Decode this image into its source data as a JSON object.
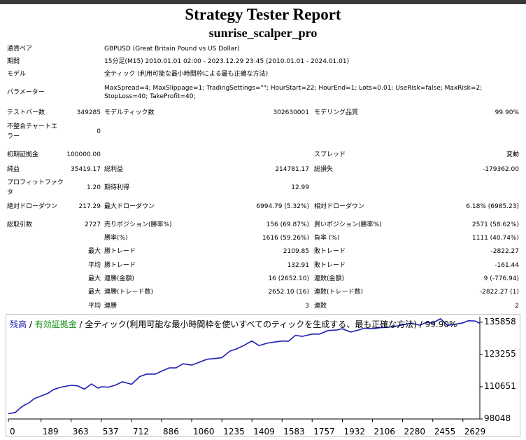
{
  "report": {
    "title": "Strategy Tester Report",
    "expert_name": "sunrise_scalper_pro"
  },
  "settings": {
    "symbol_label": "通貨ペア",
    "symbol_value": "GBPUSD (Great Britain Pound vs US Dollar)",
    "period_label": "期間",
    "period_value": "15分足(M15) 2010.01.01 02:00 - 2023.12.29 23:45 (2010.01.01 - 2024.01.01)",
    "model_label": "モデル",
    "model_value": "全ティック (利用可能な最小時間枠による最も正確な方法)",
    "params_label": "パラメーター",
    "params_line1": "MaxSpread=4; MaxSlippage=1; TradingSettings=\"\"; HourStart=22; HourEnd=1; Lots=0.01; UseRisk=false; MaxRisk=2;",
    "params_line2": "StopLoss=40; TakeProfit=40;"
  },
  "stats": {
    "bars_label": "テストバー数",
    "bars_value": "349285",
    "ticks_label": "モデルティック数",
    "ticks_value": "302630001",
    "quality_label": "モデリング品質",
    "quality_value": "99.90%",
    "mismatch_label_1": "不整合チャートエ",
    "mismatch_label_2": "ラー",
    "mismatch_value": "0",
    "deposit_label": "初期証拠金",
    "deposit_value": "100000.00",
    "spread_label": "スプレッド",
    "spread_value": "変動",
    "net_label": "純益",
    "net_value": "35419.17",
    "gross_profit_label": "総利益",
    "gross_profit_value": "214781.17",
    "gross_loss_label": "総損失",
    "gross_loss_value": "-179362.00",
    "pf_label_1": "プロフィットファク",
    "pf_label_2": "タ",
    "pf_value": "1.20",
    "expected_label": "期待利得",
    "expected_value": "12.99",
    "abs_dd_label": "絶対ドローダウン",
    "abs_dd_value": "217.29",
    "max_dd_label": "最大ドローダウン",
    "max_dd_value": "6994.79 (5.32%)",
    "rel_dd_label": "相対ドローダウン",
    "rel_dd_value": "6.18% (6985.23)",
    "trades_label": "総取引数",
    "trades_value": "2727",
    "short_label": "売りポジション(勝率%)",
    "short_value": "156 (69.87%)",
    "long_label": "買いポジション(勝率%)",
    "long_value": "2571 (58.62%)",
    "win_pct_label": "勝率(%)",
    "win_pct_value": "1616 (59.26%)",
    "loss_pct_label": "負率 (%)",
    "loss_pct_value": "1111 (40.74%)",
    "largest_label": "最大",
    "largest_win_label": "勝トレード",
    "largest_win_value": "2109.85",
    "largest_loss_label": "敗トレード",
    "largest_loss_value": "-2822.27",
    "average_label": "平均",
    "avg_win_label": "勝トレード",
    "avg_win_value": "132.91",
    "avg_loss_label": "敗トレード",
    "avg_loss_value": "-161.44",
    "max1_label": "最大",
    "max_consec_wins_label": "連勝(金額)",
    "max_consec_wins_value": "16 (2652.10)",
    "max_consec_losses_label": "連敗(金額)",
    "max_consec_losses_value": "9 (-776.94)",
    "max2_label": "最大",
    "max_consec_profit_label": "連勝(トレード数)",
    "max_consec_profit_value": "2652.10 (16)",
    "max_consec_loss_label": "連敗(トレード数)",
    "max_consec_loss_value": "-2822.27 (1)",
    "avg2_label": "平均",
    "avg_consec_wins_label": "連勝",
    "avg_consec_wins_value": "3",
    "avg_consec_losses_label": "連敗",
    "avg_consec_losses_value": "2"
  },
  "chart_legend": {
    "balance": "残高",
    "sep1": " / ",
    "margin": "有効証拠金",
    "sep2": " / ",
    "desc": "全ティック(利用可能な最小時間枠を使いすべてのティックを生成する、最も正確な方法) / 99.90%"
  },
  "colors": {
    "balance_line": "#1c1cb4",
    "margin_label": "#1a8f1a",
    "frame": "#c0c0c0"
  },
  "chart_data": {
    "type": "line",
    "title": "",
    "xlabel": "",
    "ylabel": "",
    "x_ticks": [
      "0",
      "189",
      "363",
      "537",
      "712",
      "886",
      "1060",
      "1235",
      "1409",
      "1583",
      "1757",
      "1932",
      "2106",
      "2280",
      "2455",
      "2629"
    ],
    "y_ticks": [
      "135858",
      "123255",
      "110651",
      "98048"
    ],
    "xlim": [
      0,
      2727
    ],
    "ylim": [
      98048,
      138000
    ],
    "grid": false,
    "series": [
      {
        "name": "残高",
        "x": [
          0,
          40,
          80,
          120,
          150,
          189,
          230,
          260,
          300,
          330,
          363,
          400,
          440,
          480,
          520,
          537,
          580,
          620,
          660,
          712,
          760,
          800,
          850,
          886,
          930,
          970,
          1010,
          1060,
          1100,
          1150,
          1200,
          1235,
          1280,
          1320,
          1360,
          1409,
          1450,
          1500,
          1540,
          1583,
          1620,
          1660,
          1700,
          1757,
          1800,
          1850,
          1900,
          1932,
          1980,
          2020,
          2060,
          2106,
          2150,
          2200,
          2250,
          2280,
          2330,
          2380,
          2420,
          2455,
          2480,
          2500,
          2540,
          2580,
          2629,
          2660,
          2700,
          2727
        ],
        "y": [
          100100,
          100600,
          103000,
          104400,
          106000,
          107000,
          108100,
          109500,
          110400,
          110800,
          111200,
          111000,
          109700,
          111700,
          110100,
          110600,
          110500,
          111300,
          112600,
          111600,
          114600,
          115600,
          115600,
          116700,
          118000,
          118000,
          119600,
          119100,
          120100,
          121400,
          121700,
          122000,
          124500,
          125400,
          126700,
          128500,
          126700,
          127700,
          128100,
          128500,
          128400,
          130700,
          130300,
          131200,
          131200,
          132600,
          132800,
          133300,
          132000,
          132700,
          133500,
          133300,
          133700,
          133900,
          134400,
          134800,
          135400,
          134700,
          135800,
          135500,
          136500,
          137200,
          134600,
          135000,
          135600,
          136400,
          136300,
          135400
        ]
      }
    ]
  }
}
